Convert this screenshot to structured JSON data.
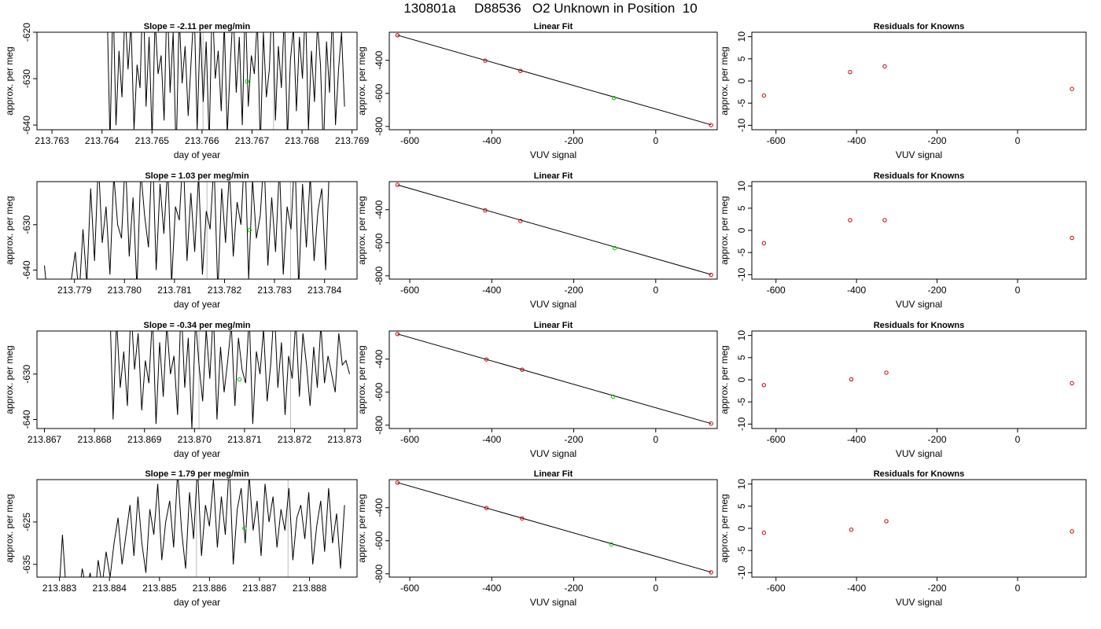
{
  "page_title": "130801a     D88536   O2 Unknown in Position  10",
  "colors": {
    "trace": "#000000",
    "known_point": "#cc0000",
    "unknown_point": "#00cc00",
    "fit_line": "#000000",
    "vline": "#bbbbbb"
  },
  "chart_data": [
    {
      "type": "line",
      "title": "Slope =  -2.11  per meg/min",
      "xlabel": "day of year",
      "ylabel": "approx. per meg",
      "xlim": [
        213.7627,
        213.7691
      ],
      "ylim": [
        -641,
        -620
      ],
      "xticks": [
        213.763,
        213.764,
        213.765,
        213.766,
        213.767,
        213.768,
        213.769
      ],
      "xtick_labels": [
        "213.763",
        "213.764",
        "213.765",
        "213.766",
        "213.767",
        "213.768",
        "213.769"
      ],
      "yticks": [
        -620,
        -630,
        -640
      ],
      "ytick_labels": [
        "-620",
        "-630",
        "-640"
      ],
      "vlines": [
        213.76602,
        213.76743
      ],
      "trace_x_range": [
        213.7641,
        213.76885
      ],
      "trace_values": [
        -613,
        -644,
        -612,
        -640,
        -624,
        -634,
        -615,
        -628,
        -618,
        -641,
        -627,
        -632,
        -609,
        -636,
        -621,
        -643,
        -617,
        -629,
        -625,
        -639,
        -611,
        -633,
        -620,
        -647,
        -616,
        -631,
        -623,
        -638,
        -626,
        -614,
        -641,
        -619,
        -635,
        -622,
        -644,
        -612,
        -630,
        -624,
        -637,
        -618,
        -642,
        -627,
        -615,
        -633,
        -621,
        -640,
        -613,
        -636,
        -625,
        -629,
        -617,
        -645,
        -620,
        -634,
        -628,
        -611,
        -639,
        -623,
        -632,
        -616,
        -643,
        -626,
        -619,
        -637,
        -621,
        -630,
        -614,
        -641,
        -624,
        -635,
        -618,
        -627,
        -646,
        -622,
        -633,
        -615,
        -640,
        -628,
        -620,
        -636
      ],
      "point": {
        "x": 213.7669,
        "y": -630.6
      }
    },
    {
      "type": "scatter",
      "title": "Linear Fit",
      "xlabel": "VUV signal",
      "ylabel": "approx. per meg",
      "xlim": [
        -650,
        150
      ],
      "ylim": [
        -820,
        -230
      ],
      "xticks": [
        -600,
        -400,
        -200,
        0
      ],
      "xtick_labels": [
        "-600",
        "-400",
        "-200",
        "0"
      ],
      "yticks": [
        -400,
        -600,
        -800
      ],
      "ytick_labels": [
        "-400",
        "-600",
        "-800"
      ],
      "fit_line": {
        "x1": -630,
        "y1": -248,
        "x2": 135,
        "y2": -790
      },
      "known_points": [
        {
          "x": -630,
          "y": -248
        },
        {
          "x": -416,
          "y": -402
        },
        {
          "x": -330,
          "y": -464
        },
        {
          "x": 135,
          "y": -792
        }
      ],
      "unknown_points": [
        {
          "x": -102,
          "y": -628
        }
      ]
    },
    {
      "type": "scatter",
      "title": "Residuals for Knowns",
      "xlabel": "VUV signal",
      "ylabel": "approx. per meg",
      "xlim": [
        -660,
        170
      ],
      "ylim": [
        -11,
        11
      ],
      "xticks": [
        -600,
        -400,
        -200,
        0
      ],
      "xtick_labels": [
        "-600",
        "-400",
        "-200",
        "0"
      ],
      "yticks": [
        10,
        5,
        0,
        -5,
        -10
      ],
      "ytick_labels": [
        "10",
        "5",
        "0",
        "-5",
        "-10"
      ],
      "known_points": [
        {
          "x": -630,
          "y": -3.3
        },
        {
          "x": -416,
          "y": 2.0
        },
        {
          "x": -330,
          "y": 3.3
        },
        {
          "x": 135,
          "y": -1.8
        }
      ]
    },
    {
      "type": "line",
      "title": "Slope =  1.03  per meg/min",
      "xlabel": "day of year",
      "ylabel": "approx. per meg",
      "xlim": [
        213.77825,
        213.78465
      ],
      "ylim": [
        -642,
        -620.5
      ],
      "xticks": [
        213.779,
        213.78,
        213.781,
        213.782,
        213.783,
        213.784
      ],
      "xtick_labels": [
        "213.779",
        "213.780",
        "213.781",
        "213.782",
        "213.783",
        "213.784"
      ],
      "yticks": [
        -630,
        -640
      ],
      "ytick_labels": [
        "-630",
        "-640"
      ],
      "vlines": [
        213.78165,
        213.78332
      ],
      "trace_x_range": [
        213.7784,
        213.7841
      ],
      "trace_values": [
        -639,
        -648,
        -652,
        -656,
        -650,
        -645,
        -648,
        -642,
        -636,
        -646,
        -631,
        -643,
        -622,
        -638,
        -616,
        -634,
        -626,
        -641,
        -619,
        -630,
        -633,
        -615,
        -637,
        -624,
        -644,
        -618,
        -628,
        -635,
        -612,
        -640,
        -621,
        -632,
        -617,
        -643,
        -626,
        -629,
        -614,
        -638,
        -623,
        -636,
        -619,
        -641,
        -627,
        -631,
        -616,
        -645,
        -622,
        -634,
        -618,
        -637,
        -625,
        -630,
        -613,
        -642,
        -620,
        -633,
        -628,
        -615,
        -639,
        -624,
        -636,
        -617,
        -641,
        -626,
        -631,
        -614,
        -644,
        -621,
        -635,
        -619,
        -638,
        -627,
        -622,
        -640,
        -616
      ],
      "point": {
        "x": 213.7825,
        "y": -631.2
      }
    },
    {
      "type": "scatter",
      "title": "Linear Fit",
      "xlabel": "VUV signal",
      "ylabel": "approx. per meg",
      "xlim": [
        -650,
        150
      ],
      "ylim": [
        -820,
        -230
      ],
      "xticks": [
        -600,
        -400,
        -200,
        0
      ],
      "xtick_labels": [
        "-600",
        "-400",
        "-200",
        "0"
      ],
      "yticks": [
        -400,
        -600,
        -800
      ],
      "ytick_labels": [
        "-400",
        "-600",
        "-800"
      ],
      "fit_line": {
        "x1": -630,
        "y1": -250,
        "x2": 135,
        "y2": -792
      },
      "known_points": [
        {
          "x": -630,
          "y": -249
        },
        {
          "x": -416,
          "y": -404
        },
        {
          "x": -330,
          "y": -468
        },
        {
          "x": 135,
          "y": -794
        }
      ],
      "unknown_points": [
        {
          "x": -100,
          "y": -632
        }
      ]
    },
    {
      "type": "scatter",
      "title": "Residuals for Knowns",
      "xlabel": "VUV signal",
      "ylabel": "approx. per meg",
      "xlim": [
        -660,
        170
      ],
      "ylim": [
        -11,
        11
      ],
      "xticks": [
        -600,
        -400,
        -200,
        0
      ],
      "xtick_labels": [
        "-600",
        "-400",
        "-200",
        "0"
      ],
      "yticks": [
        10,
        5,
        0,
        -5,
        -10
      ],
      "ytick_labels": [
        "10",
        "5",
        "0",
        "-5",
        "-10"
      ],
      "known_points": [
        {
          "x": -630,
          "y": -2.9
        },
        {
          "x": -416,
          "y": 2.3
        },
        {
          "x": -330,
          "y": 2.3
        },
        {
          "x": 135,
          "y": -1.7
        }
      ]
    },
    {
      "type": "line",
      "title": "Slope =  -0.34  per meg/min",
      "xlabel": "day of year",
      "ylabel": "approx. per meg",
      "xlim": [
        213.86685,
        213.87325
      ],
      "ylim": [
        -642,
        -620.5
      ],
      "xticks": [
        213.867,
        213.868,
        213.869,
        213.87,
        213.871,
        213.872,
        213.873
      ],
      "xtick_labels": [
        "213.867",
        "213.868",
        "213.869",
        "213.870",
        "213.871",
        "213.872",
        "213.873"
      ],
      "yticks": [
        -630,
        -640
      ],
      "ytick_labels": [
        "-630",
        "-640"
      ],
      "vlines": [
        213.87009,
        213.87192
      ],
      "trace_x_range": [
        213.8683,
        213.8731
      ],
      "trace_values": [
        -612,
        -640,
        -618,
        -633,
        -625,
        -637,
        -615,
        -629,
        -621,
        -638,
        -627,
        -632,
        -617,
        -641,
        -623,
        -635,
        -619,
        -630,
        -626,
        -639,
        -614,
        -633,
        -622,
        -642,
        -618,
        -628,
        -636,
        -620,
        -631,
        -616,
        -640,
        -624,
        -634,
        -627,
        -619,
        -637,
        -622,
        -629,
        -632,
        -617,
        -641,
        -625,
        -630,
        -620,
        -636,
        -628,
        -615,
        -633,
        -623,
        -639,
        -626,
        -631,
        -618,
        -635,
        -621,
        -628,
        -637,
        -624,
        -633,
        -619,
        -632,
        -626,
        -630,
        -634,
        -621,
        -628,
        -627,
        -630
      ],
      "point": {
        "x": 213.8709,
        "y": -631.2
      }
    },
    {
      "type": "scatter",
      "title": "Linear Fit",
      "xlabel": "VUV signal",
      "ylabel": "approx. per meg",
      "xlim": [
        -650,
        150
      ],
      "ylim": [
        -820,
        -230
      ],
      "xticks": [
        -600,
        -400,
        -200,
        0
      ],
      "xtick_labels": [
        "-600",
        "-400",
        "-200",
        "0"
      ],
      "yticks": [
        -400,
        -600,
        -800
      ],
      "ytick_labels": [
        "-400",
        "-600",
        "-800"
      ],
      "fit_line": {
        "x1": -630,
        "y1": -248,
        "x2": 135,
        "y2": -790
      },
      "known_points": [
        {
          "x": -630,
          "y": -248
        },
        {
          "x": -413,
          "y": -402
        },
        {
          "x": -326,
          "y": -464
        },
        {
          "x": 135,
          "y": -790
        }
      ],
      "unknown_points": [
        {
          "x": -104,
          "y": -627
        }
      ]
    },
    {
      "type": "scatter",
      "title": "Residuals for Knowns",
      "xlabel": "VUV signal",
      "ylabel": "approx. per meg",
      "xlim": [
        -660,
        170
      ],
      "ylim": [
        -11,
        11
      ],
      "xticks": [
        -600,
        -400,
        -200,
        0
      ],
      "xtick_labels": [
        "-600",
        "-400",
        "-200",
        "0"
      ],
      "yticks": [
        10,
        5,
        0,
        -5,
        -10
      ],
      "ytick_labels": [
        "10",
        "5",
        "0",
        "-5",
        "-10"
      ],
      "known_points": [
        {
          "x": -630,
          "y": -1.2
        },
        {
          "x": -413,
          "y": 0.1
        },
        {
          "x": -326,
          "y": 1.6
        },
        {
          "x": 135,
          "y": -0.8
        }
      ]
    },
    {
      "type": "line",
      "title": "Slope =  1.79  per meg/min",
      "xlabel": "day of year",
      "ylabel": "approx. per meg",
      "xlim": [
        213.88255,
        213.88895
      ],
      "ylim": [
        -638,
        -615
      ],
      "xticks": [
        213.883,
        213.884,
        213.885,
        213.886,
        213.887,
        213.888
      ],
      "xtick_labels": [
        "213.883",
        "213.884",
        "213.885",
        "213.886",
        "213.887",
        "213.888"
      ],
      "yticks": [
        -625,
        -635
      ],
      "ytick_labels": [
        "-625",
        "-635"
      ],
      "vlines": [
        213.88574,
        213.88757
      ],
      "trace_x_range": [
        213.8829,
        213.8887
      ],
      "trace_values": [
        -640,
        -644,
        -628,
        -642,
        -646,
        -639,
        -643,
        -636,
        -641,
        -637,
        -645,
        -634,
        -640,
        -632,
        -638,
        -630,
        -624,
        -635,
        -628,
        -621,
        -633,
        -619,
        -630,
        -637,
        -622,
        -628,
        -616,
        -634,
        -625,
        -620,
        -631,
        -613,
        -627,
        -636,
        -618,
        -629,
        -612,
        -633,
        -621,
        -626,
        -615,
        -631,
        -619,
        -628,
        -611,
        -635,
        -622,
        -617,
        -630,
        -614,
        -627,
        -620,
        -633,
        -616,
        -625,
        -619,
        -631,
        -622,
        -627,
        -617,
        -634,
        -624,
        -621,
        -629,
        -618,
        -635,
        -626,
        -620,
        -632,
        -617,
        -630,
        -623,
        -636,
        -621
      ],
      "point": {
        "x": 213.8867,
        "y": -626.5
      }
    },
    {
      "type": "scatter",
      "title": "Linear Fit",
      "xlabel": "VUV signal",
      "ylabel": "approx. per meg",
      "xlim": [
        -650,
        150
      ],
      "ylim": [
        -820,
        -230
      ],
      "xticks": [
        -600,
        -400,
        -200,
        0
      ],
      "xtick_labels": [
        "-600",
        "-400",
        "-200",
        "0"
      ],
      "yticks": [
        -400,
        -600,
        -800
      ],
      "ytick_labels": [
        "-400",
        "-600",
        "-800"
      ],
      "fit_line": {
        "x1": -630,
        "y1": -248,
        "x2": 135,
        "y2": -790
      },
      "known_points": [
        {
          "x": -630,
          "y": -248
        },
        {
          "x": -413,
          "y": -402
        },
        {
          "x": -326,
          "y": -465
        },
        {
          "x": 135,
          "y": -791
        }
      ],
      "unknown_points": [
        {
          "x": -108,
          "y": -622
        }
      ]
    },
    {
      "type": "scatter",
      "title": "Residuals for Knowns",
      "xlabel": "VUV signal",
      "ylabel": "approx. per meg",
      "xlim": [
        -660,
        170
      ],
      "ylim": [
        -11,
        11
      ],
      "xticks": [
        -600,
        -400,
        -200,
        0
      ],
      "xtick_labels": [
        "-600",
        "-400",
        "-200",
        "0"
      ],
      "yticks": [
        10,
        5,
        0,
        -5,
        -10
      ],
      "ytick_labels": [
        "10",
        "5",
        "0",
        "-5",
        "-10"
      ],
      "known_points": [
        {
          "x": -630,
          "y": -1.0
        },
        {
          "x": -413,
          "y": -0.3
        },
        {
          "x": -326,
          "y": 1.6
        },
        {
          "x": 135,
          "y": -0.7
        }
      ]
    }
  ]
}
